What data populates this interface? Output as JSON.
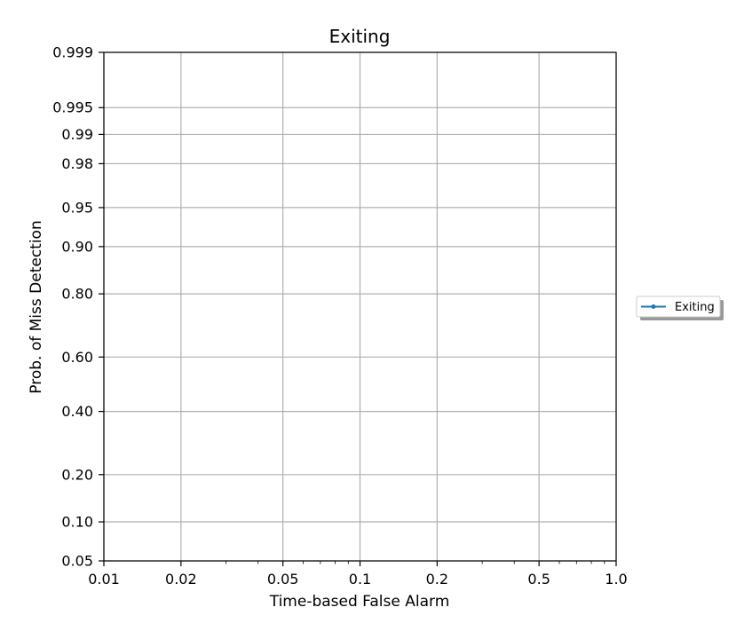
{
  "chart_data": {
    "type": "line",
    "title": "Exiting",
    "xlabel": "Time-based False Alarm",
    "ylabel": "Prob. of Miss Detection",
    "x_scale": "log",
    "y_scale": "probit",
    "xlim": [
      0.01,
      1.0
    ],
    "ylim": [
      0.05,
      0.999
    ],
    "xticks": [
      0.01,
      0.02,
      0.05,
      0.1,
      0.2,
      0.5,
      1.0
    ],
    "xtick_labels": [
      "0.01",
      "0.02",
      "0.05",
      "0.1",
      "0.2",
      "0.5",
      "1.0"
    ],
    "yticks": [
      0.05,
      0.1,
      0.2,
      0.4,
      0.6,
      0.8,
      0.9,
      0.95,
      0.98,
      0.99,
      0.995,
      0.999
    ],
    "ytick_labels": [
      "0.05",
      "0.10",
      "0.20",
      "0.40",
      "0.60",
      "0.80",
      "0.90",
      "0.95",
      "0.98",
      "0.99",
      "0.995",
      "0.999"
    ],
    "grid": true,
    "legend_position": "right-outside",
    "series": [
      {
        "name": "Exiting",
        "color": "#1f77b4",
        "marker": "circle",
        "x": [],
        "y": []
      }
    ]
  }
}
